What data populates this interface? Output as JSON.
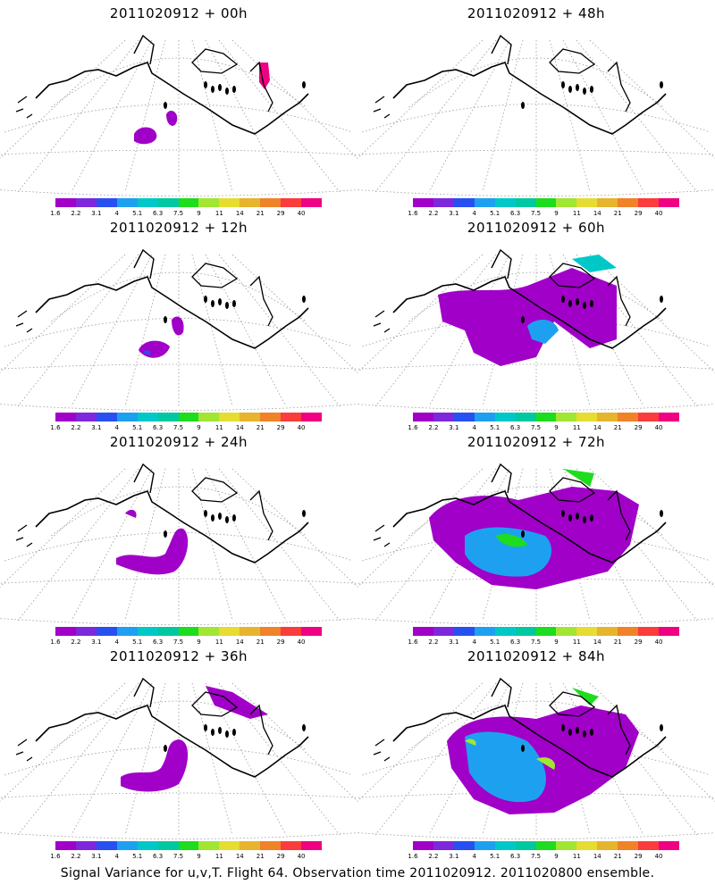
{
  "footer": "Signal Variance for u,v,T. Flight 64. Observation time 2011020912. 2011020800 ensemble.",
  "colorbar": {
    "labels": [
      "1.6",
      "2.2",
      "3.1",
      "4",
      "5.1",
      "6.3",
      "7.5",
      "9",
      "11",
      "14",
      "21",
      "29",
      "40"
    ],
    "colors": [
      "#a000c8",
      "#7d28dc",
      "#2850f0",
      "#1ea0f0",
      "#00c8c8",
      "#00c8a0",
      "#1edc1e",
      "#a0e632",
      "#e6dc32",
      "#e6b42d",
      "#f08228",
      "#fa3c3c",
      "#f00082"
    ]
  },
  "panels": [
    {
      "title": "2011020912 + 00h"
    },
    {
      "title": "2011020912 + 48h"
    },
    {
      "title": "2011020912 + 12h"
    },
    {
      "title": "2011020912 + 60h"
    },
    {
      "title": "2011020912 + 24h"
    },
    {
      "title": "2011020912 + 72h"
    },
    {
      "title": "2011020912 + 36h"
    },
    {
      "title": "2011020912 + 84h"
    }
  ]
}
